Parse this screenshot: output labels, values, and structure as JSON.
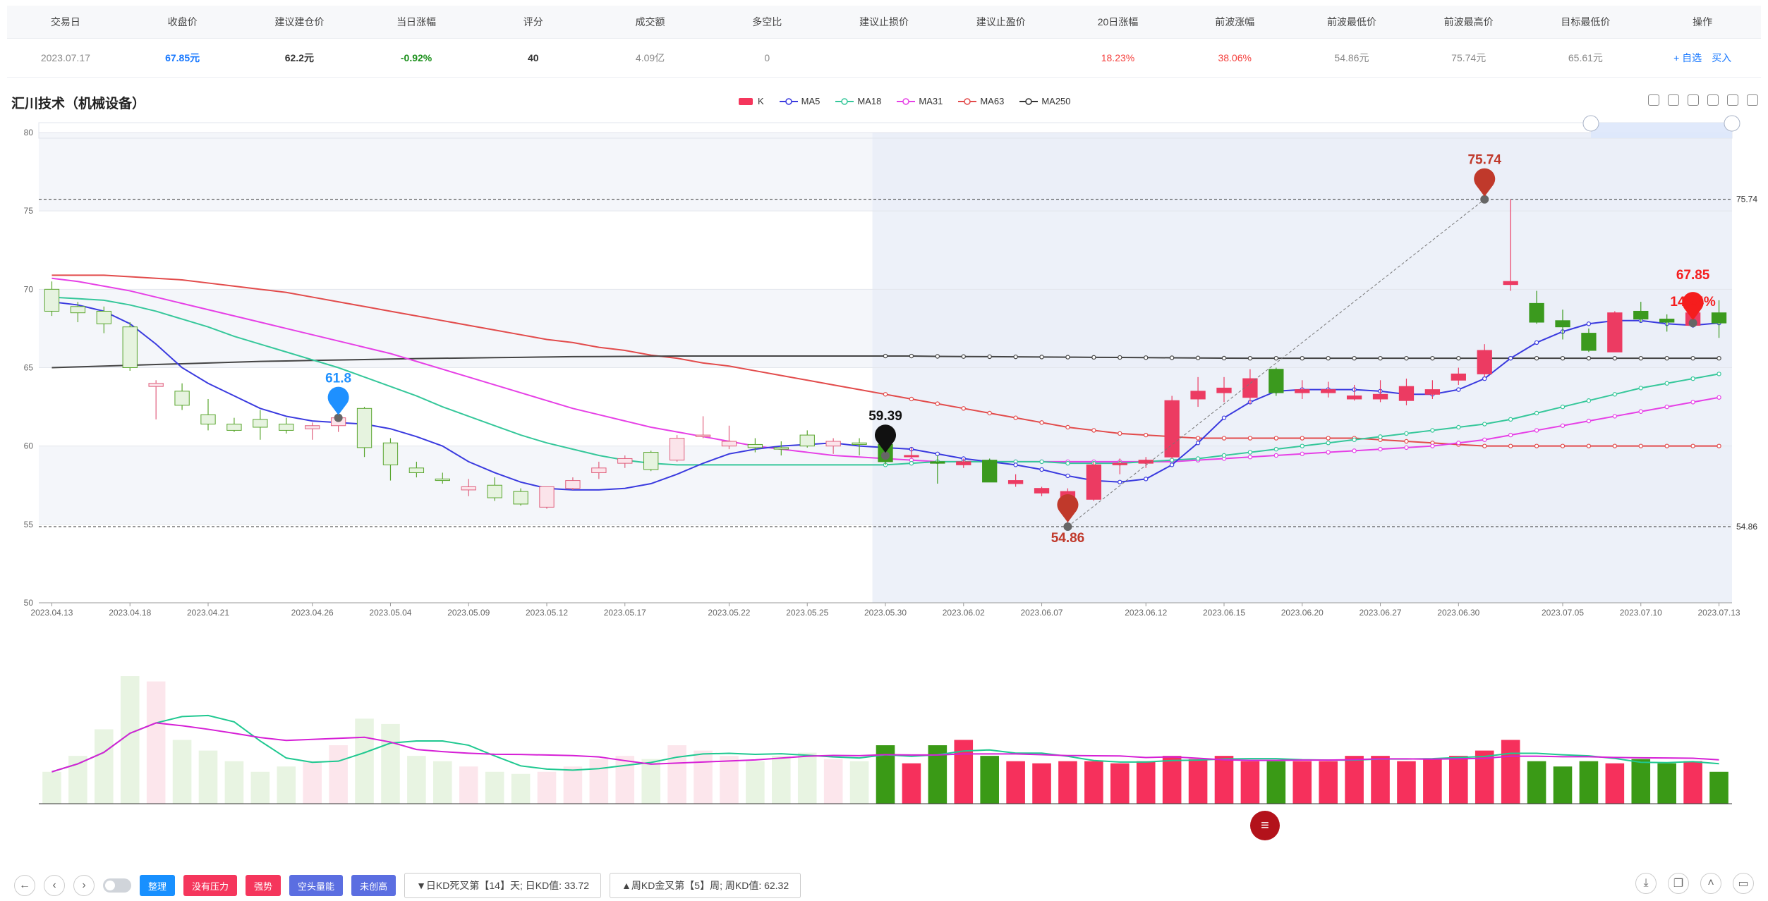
{
  "table": {
    "headers": [
      "交易日",
      "收盘价",
      "建议建仓价",
      "当日涨幅",
      "评分",
      "成交额",
      "多空比",
      "建议止损价",
      "建议止盈价",
      "20日涨幅",
      "前波涨幅",
      "前波最低价",
      "前波最高价",
      "目标最低价",
      "操作"
    ],
    "values": [
      "2023.07.17",
      "67.85元",
      "62.2元",
      "-0.92%",
      "40",
      "4.09亿",
      "0",
      "",
      "",
      "18.23%",
      "38.06%",
      "54.86元",
      "75.74元",
      "65.61元",
      ""
    ],
    "ops": [
      "+ 自选",
      "买入"
    ]
  },
  "chart_title": "汇川技术（机械设备）",
  "legend": [
    {
      "name": "K",
      "color": "#f5365c"
    },
    {
      "name": "MA5",
      "color": "#3a3adf"
    },
    {
      "name": "MA18",
      "color": "#35c79a"
    },
    {
      "name": "MA31",
      "color": "#e640e6"
    },
    {
      "name": "MA63",
      "color": "#e24b4b"
    },
    {
      "name": "MA250",
      "color": "#333333"
    }
  ],
  "chart_data": {
    "type": "candlestick",
    "ylim": [
      50,
      80
    ],
    "yticks": [
      50,
      55,
      60,
      65,
      70,
      75,
      80
    ],
    "xtick_labels": [
      "2023.04.13",
      "2023.04.18",
      "2023.04.21",
      "2023.04.26",
      "2023.05.04",
      "2023.05.09",
      "2023.05.12",
      "2023.05.17",
      "2023.05.22",
      "2023.05.25",
      "2023.05.30",
      "2023.06.02",
      "2023.06.07",
      "2023.06.12",
      "2023.06.15",
      "2023.06.20",
      "2023.06.27",
      "2023.06.30",
      "2023.07.05",
      "2023.07.10",
      "2023.07.13"
    ],
    "candles": [
      {
        "o": 70.0,
        "h": 70.5,
        "l": 68.3,
        "c": 68.6
      },
      {
        "o": 68.9,
        "h": 69.2,
        "l": 67.9,
        "c": 68.5
      },
      {
        "o": 68.6,
        "h": 68.9,
        "l": 67.2,
        "c": 67.8
      },
      {
        "o": 67.6,
        "h": 67.9,
        "l": 64.8,
        "c": 65.0
      },
      {
        "o": 63.8,
        "h": 64.2,
        "l": 61.7,
        "c": 64.0
      },
      {
        "o": 63.5,
        "h": 64.0,
        "l": 62.3,
        "c": 62.6
      },
      {
        "o": 62.0,
        "h": 63.0,
        "l": 61.0,
        "c": 61.4
      },
      {
        "o": 61.4,
        "h": 61.8,
        "l": 60.9,
        "c": 61.0
      },
      {
        "o": 61.7,
        "h": 62.3,
        "l": 60.4,
        "c": 61.2
      },
      {
        "o": 61.4,
        "h": 61.8,
        "l": 60.8,
        "c": 61.0
      },
      {
        "o": 61.1,
        "h": 61.5,
        "l": 60.4,
        "c": 61.3
      },
      {
        "o": 61.3,
        "h": 61.9,
        "l": 60.9,
        "c": 61.8
      },
      {
        "o": 62.4,
        "h": 62.5,
        "l": 59.3,
        "c": 59.9
      },
      {
        "o": 60.2,
        "h": 60.5,
        "l": 57.8,
        "c": 58.8
      },
      {
        "o": 58.6,
        "h": 59.0,
        "l": 58.0,
        "c": 58.3
      },
      {
        "o": 57.9,
        "h": 58.3,
        "l": 57.6,
        "c": 57.8
      },
      {
        "o": 57.2,
        "h": 57.9,
        "l": 56.8,
        "c": 57.4
      },
      {
        "o": 57.5,
        "h": 58.0,
        "l": 56.5,
        "c": 56.7
      },
      {
        "o": 57.1,
        "h": 57.3,
        "l": 56.2,
        "c": 56.3
      },
      {
        "o": 56.1,
        "h": 57.4,
        "l": 56.0,
        "c": 57.4
      },
      {
        "o": 57.3,
        "h": 58.0,
        "l": 57.2,
        "c": 57.8
      },
      {
        "o": 58.3,
        "h": 59.0,
        "l": 57.9,
        "c": 58.6
      },
      {
        "o": 58.9,
        "h": 59.4,
        "l": 58.6,
        "c": 59.2
      },
      {
        "o": 59.6,
        "h": 59.7,
        "l": 58.4,
        "c": 58.5
      },
      {
        "o": 59.1,
        "h": 60.7,
        "l": 59.0,
        "c": 60.5
      },
      {
        "o": 60.6,
        "h": 61.9,
        "l": 60.5,
        "c": 60.7
      },
      {
        "o": 60.0,
        "h": 61.3,
        "l": 59.8,
        "c": 60.3
      },
      {
        "o": 60.1,
        "h": 60.5,
        "l": 59.6,
        "c": 59.9
      },
      {
        "o": 59.9,
        "h": 60.3,
        "l": 59.4,
        "c": 59.8
      },
      {
        "o": 60.7,
        "h": 61.0,
        "l": 59.9,
        "c": 60.0
      },
      {
        "o": 60.0,
        "h": 60.5,
        "l": 59.5,
        "c": 60.3
      },
      {
        "o": 60.2,
        "h": 60.5,
        "l": 59.4,
        "c": 60.1
      },
      {
        "o": 60.1,
        "h": 60.4,
        "l": 58.8,
        "c": 59.0
      },
      {
        "o": 59.4,
        "h": 59.9,
        "l": 59.2,
        "c": 59.4
      },
      {
        "o": 59.0,
        "h": 59.4,
        "l": 57.6,
        "c": 58.9
      },
      {
        "o": 58.8,
        "h": 59.2,
        "l": 58.6,
        "c": 59.0
      },
      {
        "o": 59.1,
        "h": 59.2,
        "l": 57.8,
        "c": 57.7
      },
      {
        "o": 57.6,
        "h": 58.2,
        "l": 57.4,
        "c": 57.8
      },
      {
        "o": 57.0,
        "h": 57.4,
        "l": 56.8,
        "c": 57.3
      },
      {
        "o": 55.8,
        "h": 57.3,
        "l": 54.86,
        "c": 57.1
      },
      {
        "o": 56.6,
        "h": 59.0,
        "l": 56.5,
        "c": 58.8
      },
      {
        "o": 58.8,
        "h": 59.2,
        "l": 58.2,
        "c": 58.9
      },
      {
        "o": 58.9,
        "h": 59.3,
        "l": 58.6,
        "c": 59.1
      },
      {
        "o": 59.3,
        "h": 63.2,
        "l": 59.2,
        "c": 62.9
      },
      {
        "o": 63.0,
        "h": 64.4,
        "l": 62.5,
        "c": 63.5
      },
      {
        "o": 63.4,
        "h": 64.4,
        "l": 62.8,
        "c": 63.7
      },
      {
        "o": 63.1,
        "h": 64.9,
        "l": 62.7,
        "c": 64.3
      },
      {
        "o": 64.9,
        "h": 65.0,
        "l": 63.2,
        "c": 63.4
      },
      {
        "o": 63.4,
        "h": 64.2,
        "l": 63.0,
        "c": 63.6
      },
      {
        "o": 63.4,
        "h": 64.1,
        "l": 63.1,
        "c": 63.6
      },
      {
        "o": 63.0,
        "h": 63.9,
        "l": 62.9,
        "c": 63.2
      },
      {
        "o": 63.0,
        "h": 64.2,
        "l": 62.8,
        "c": 63.3
      },
      {
        "o": 62.9,
        "h": 64.3,
        "l": 62.6,
        "c": 63.8
      },
      {
        "o": 63.3,
        "h": 64.2,
        "l": 63.0,
        "c": 63.6
      },
      {
        "o": 64.2,
        "h": 65.0,
        "l": 63.9,
        "c": 64.6
      },
      {
        "o": 64.6,
        "h": 66.5,
        "l": 64.4,
        "c": 66.1
      },
      {
        "o": 70.3,
        "h": 75.74,
        "l": 69.9,
        "c": 70.5
      },
      {
        "o": 69.1,
        "h": 69.9,
        "l": 67.8,
        "c": 67.9
      },
      {
        "o": 68.0,
        "h": 68.7,
        "l": 66.8,
        "c": 67.6
      },
      {
        "o": 67.2,
        "h": 67.5,
        "l": 66.0,
        "c": 66.1
      },
      {
        "o": 66.0,
        "h": 68.6,
        "l": 66.0,
        "c": 68.5
      },
      {
        "o": 68.6,
        "h": 69.2,
        "l": 67.9,
        "c": 68.1
      },
      {
        "o": 68.1,
        "h": 68.4,
        "l": 67.3,
        "c": 67.9
      },
      {
        "o": 67.7,
        "h": 69.0,
        "l": 67.6,
        "c": 68.5
      },
      {
        "o": 68.5,
        "h": 69.3,
        "l": 66.9,
        "c": 67.85
      }
    ],
    "ma5": [
      69.2,
      69.0,
      68.6,
      67.8,
      66.5,
      65.0,
      64.0,
      63.2,
      62.4,
      61.9,
      61.6,
      61.5,
      61.4,
      61.1,
      60.6,
      60.0,
      59.0,
      58.3,
      57.7,
      57.3,
      57.2,
      57.2,
      57.3,
      57.6,
      58.2,
      58.9,
      59.5,
      59.8,
      60.0,
      60.1,
      60.2,
      60.0,
      59.9,
      59.8,
      59.5,
      59.2,
      59.0,
      58.8,
      58.5,
      58.1,
      57.8,
      57.7,
      57.9,
      58.8,
      60.2,
      61.8,
      62.8,
      63.5,
      63.6,
      63.6,
      63.6,
      63.5,
      63.3,
      63.3,
      63.6,
      64.3,
      65.6,
      66.6,
      67.3,
      67.8,
      68.0,
      68.0,
      67.8,
      67.7,
      67.85
    ],
    "ma18": [
      69.5,
      69.4,
      69.3,
      69.0,
      68.6,
      68.1,
      67.6,
      67.0,
      66.5,
      66.0,
      65.5,
      65.0,
      64.4,
      63.8,
      63.2,
      62.5,
      61.9,
      61.3,
      60.7,
      60.2,
      59.8,
      59.4,
      59.1,
      58.9,
      58.8,
      58.8,
      58.8,
      58.8,
      58.8,
      58.8,
      58.8,
      58.8,
      58.8,
      58.9,
      59.0,
      59.0,
      59.0,
      59.0,
      59.0,
      58.9,
      58.9,
      58.9,
      59.0,
      59.1,
      59.2,
      59.4,
      59.6,
      59.8,
      60.0,
      60.2,
      60.4,
      60.6,
      60.8,
      61.0,
      61.2,
      61.4,
      61.7,
      62.1,
      62.5,
      62.9,
      63.3,
      63.7,
      64.0,
      64.3,
      64.6
    ],
    "ma31": [
      70.7,
      70.5,
      70.2,
      69.9,
      69.5,
      69.1,
      68.7,
      68.3,
      67.9,
      67.5,
      67.1,
      66.7,
      66.3,
      65.9,
      65.4,
      64.9,
      64.4,
      63.9,
      63.4,
      62.9,
      62.4,
      62.0,
      61.6,
      61.2,
      60.9,
      60.6,
      60.3,
      60.0,
      59.8,
      59.6,
      59.4,
      59.3,
      59.2,
      59.1,
      59.0,
      59.0,
      59.0,
      59.0,
      59.0,
      59.0,
      59.0,
      59.0,
      59.0,
      59.0,
      59.1,
      59.2,
      59.3,
      59.4,
      59.5,
      59.6,
      59.7,
      59.8,
      59.9,
      60.0,
      60.2,
      60.4,
      60.7,
      61.0,
      61.3,
      61.6,
      61.9,
      62.2,
      62.5,
      62.8,
      63.1
    ],
    "ma63": [
      70.9,
      70.9,
      70.9,
      70.8,
      70.7,
      70.6,
      70.4,
      70.2,
      70.0,
      69.8,
      69.5,
      69.2,
      68.9,
      68.6,
      68.3,
      68.0,
      67.7,
      67.4,
      67.1,
      66.8,
      66.6,
      66.3,
      66.1,
      65.8,
      65.6,
      65.3,
      65.1,
      64.8,
      64.5,
      64.2,
      63.9,
      63.6,
      63.3,
      63.0,
      62.7,
      62.4,
      62.1,
      61.8,
      61.5,
      61.2,
      61.0,
      60.8,
      60.7,
      60.6,
      60.5,
      60.5,
      60.5,
      60.5,
      60.5,
      60.5,
      60.5,
      60.4,
      60.3,
      60.2,
      60.1,
      60.0,
      60.0,
      60.0,
      60.0,
      60.0,
      60.0,
      60.0,
      60.0,
      60.0,
      60.0
    ],
    "ma250": [
      65.0,
      65.05,
      65.1,
      65.15,
      65.2,
      65.25,
      65.3,
      65.35,
      65.4,
      65.43,
      65.46,
      65.49,
      65.52,
      65.55,
      65.58,
      65.6,
      65.62,
      65.64,
      65.66,
      65.68,
      65.7,
      65.71,
      65.72,
      65.73,
      65.74,
      65.74,
      65.74,
      65.74,
      65.74,
      65.74,
      65.74,
      65.74,
      65.74,
      65.74,
      65.72,
      65.71,
      65.7,
      65.69,
      65.68,
      65.67,
      65.66,
      65.65,
      65.64,
      65.63,
      65.62,
      65.61,
      65.6,
      65.6,
      65.6,
      65.6,
      65.6,
      65.6,
      65.6,
      65.6,
      65.6,
      65.6,
      65.6,
      65.6,
      65.6,
      65.6,
      65.6,
      65.6,
      65.6,
      65.6,
      65.6
    ],
    "volume": [
      30,
      45,
      70,
      120,
      115,
      60,
      50,
      40,
      30,
      35,
      40,
      55,
      80,
      75,
      45,
      40,
      35,
      30,
      28,
      30,
      35,
      42,
      45,
      42,
      55,
      50,
      45,
      40,
      45,
      48,
      42,
      40,
      55,
      38,
      55,
      60,
      45,
      40,
      38,
      40,
      40,
      38,
      40,
      45,
      42,
      45,
      40,
      40,
      40,
      40,
      45,
      45,
      40,
      42,
      45,
      50,
      60,
      40,
      35,
      40,
      38,
      42,
      38,
      40,
      30
    ],
    "volume_start_highlight": 32,
    "annotations": [
      {
        "label": "61.8",
        "color": "#1e90ff",
        "index": 11,
        "value": 61.8
      },
      {
        "label": "59.39",
        "color": "#111111",
        "index": 32,
        "value": 59.39
      },
      {
        "label": "54.86",
        "color": "#c0392b",
        "index": 39,
        "value": 54.86
      },
      {
        "label": "75.74",
        "color": "#c0392b",
        "index": 55,
        "value": 75.74
      },
      {
        "label": "67.85",
        "color": "#f51d1d",
        "index": 63,
        "value": 67.85
      },
      {
        "label": "14.24%",
        "color": "#f51d1d",
        "index": 63,
        "value": 67.85
      }
    ],
    "hlines": [
      {
        "value": 75.74,
        "label": "75.74"
      },
      {
        "value": 54.86,
        "label": "54.86"
      }
    ]
  },
  "bottom": {
    "buttons": [
      "整理",
      "没有压力",
      "强势",
      "空头量能",
      "未创高"
    ],
    "info1": "▼日KD死叉第【14】天; 日KD值: 33.72",
    "info2": "▲周KD金叉第【5】周; 周KD值: 62.32"
  }
}
